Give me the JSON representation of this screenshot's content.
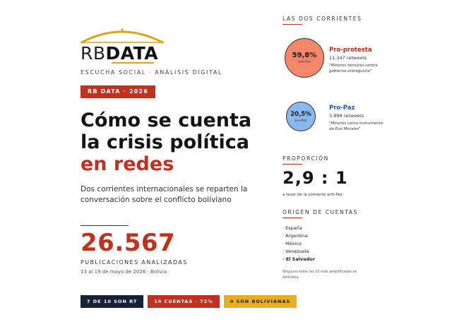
{
  "brand": {
    "rb": "RB",
    "data": "DATA",
    "tagline": "ESCUCHA SOCIAL · ANÁLISIS DIGITAL",
    "badge": "RB DATA · 2026",
    "arc_color": "#d9a514"
  },
  "headline": {
    "line1": "Cómo se cuenta",
    "line2": "la crisis política",
    "line3": "en redes"
  },
  "subtitle": "Dos corrientes internacionales se reparten la conversación sobre el conflicto boliviano",
  "stats": {
    "total": "26.567",
    "label": "PUBLICACIONES ANALIZADAS",
    "dates": "13 al 19 de mayo de 2026 · Bolivia"
  },
  "chips": [
    {
      "label": "7 DE 10 SON RT",
      "color": "#152238"
    },
    {
      "label": "10 CUENTAS · 72%",
      "color": "#c0321e"
    },
    {
      "label": "0 SON BOLIVIANAS",
      "color": "#e8b021"
    }
  ],
  "corrientes": {
    "title": "LAS DOS CORRIENTES",
    "items": [
      {
        "pct": "59,8%",
        "circle_label": "anti-Paz",
        "name": "Pro-protesta",
        "retweets": "11.347 retweets",
        "quote": "\"Mineros heroicos contra gobierno entreguista\"",
        "share": 59.8,
        "color": "#f4876a"
      },
      {
        "pct": "20,5%",
        "circle_label": "pro-Paz",
        "name": "Pro-Paz",
        "retweets": "3.898 retweets",
        "quote": "\"Mineros como instrumento de Evo Morales\"",
        "share": 20.5,
        "color": "#8ab8ee"
      }
    ]
  },
  "proporcion": {
    "title": "PROPORCIÓN",
    "value": "2,9 : 1",
    "note": "a favor de la corriente anti-Paz"
  },
  "origen": {
    "title": "ORIGEN DE CUENTAS",
    "countries": [
      "· España",
      "· Argentina",
      "· México",
      "· Venezuela",
      "· El Salvador"
    ],
    "note": "Ninguna entre las 10 más amplificadas es boliviana"
  },
  "colors": {
    "accent_red": "#c0321e",
    "navy": "#152238",
    "yellow": "#e8b021"
  }
}
